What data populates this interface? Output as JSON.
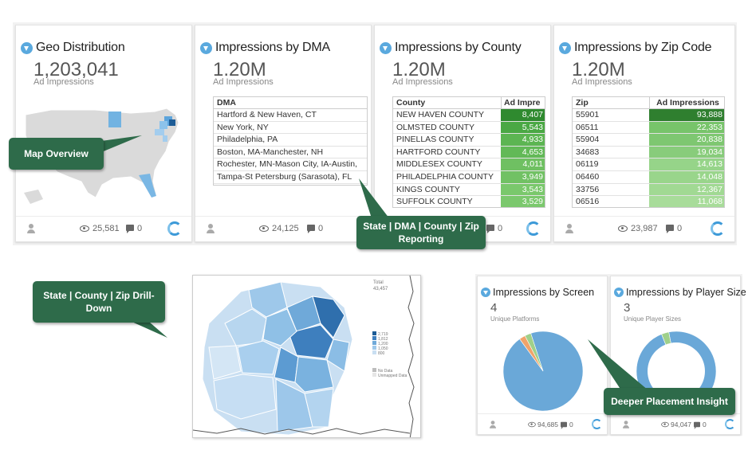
{
  "cards": {
    "geo": {
      "title": "Geo Distribution",
      "value": "1,203,041",
      "subtitle": "Ad Impressions",
      "views": "25,581",
      "comments": "0"
    },
    "dma": {
      "title": "Impressions by DMA",
      "value": "1.20M",
      "subtitle": "Ad Impressions",
      "column": "DMA",
      "rows": [
        "Hartford & New Haven, CT",
        "New York, NY",
        "Philadelphia, PA",
        "Boston, MA-Manchester, NH",
        "Rochester, MN-Mason City, IA-Austin,",
        "Tampa-St Petersburg (Sarasota), FL"
      ],
      "views": "24,125",
      "comments": "0"
    },
    "county": {
      "title": "Impressions by County",
      "value": "1.20M",
      "subtitle": "Ad Impressions",
      "columns": [
        "County",
        "Ad Impre"
      ],
      "rows": [
        {
          "name": "NEW HAVEN COUNTY",
          "value": "8,407",
          "color": "#2f8a2f"
        },
        {
          "name": "OLMSTED COUNTY",
          "value": "5,543",
          "color": "#4aa844"
        },
        {
          "name": "PINELLAS COUNTY",
          "value": "4,933",
          "color": "#5cb552"
        },
        {
          "name": "HARTFORD COUNTY",
          "value": "4,653",
          "color": "#62b957"
        },
        {
          "name": "MIDDLESEX COUNTY",
          "value": "4,011",
          "color": "#6fc062"
        },
        {
          "name": "PHILADELPHIA COUNTY",
          "value": "3,949",
          "color": "#71c164"
        },
        {
          "name": "KINGS COUNTY",
          "value": "3,543",
          "color": "#7ac86c"
        },
        {
          "name": "SUFFOLK COUNTY",
          "value": "3,529",
          "color": "#7bc86d"
        }
      ],
      "views": "",
      "comments": "0"
    },
    "zip": {
      "title": "Impressions by Zip Code",
      "value": "1.20M",
      "subtitle": "Ad Impressions",
      "columns": [
        "Zip",
        "Ad Impressions"
      ],
      "rows": [
        {
          "name": "55901",
          "value": "93,888",
          "fraction": 1.0,
          "color": "#2f7f2f"
        },
        {
          "name": "06511",
          "value": "22,353",
          "fraction": 1.0,
          "color": "#77c46a"
        },
        {
          "name": "55904",
          "value": "20,838",
          "fraction": 1.0,
          "color": "#7ec771"
        },
        {
          "name": "34683",
          "value": "19,034",
          "fraction": 1.0,
          "color": "#88cc7b"
        },
        {
          "name": "06119",
          "value": "14,613",
          "fraction": 1.0,
          "color": "#96d489"
        },
        {
          "name": "06460",
          "value": "14,048",
          "fraction": 1.0,
          "color": "#99d58b"
        },
        {
          "name": "33756",
          "value": "12,367",
          "fraction": 1.0,
          "color": "#a1d993"
        },
        {
          "name": "06516",
          "value": "11,068",
          "fraction": 1.0,
          "color": "#a8dc9a"
        }
      ],
      "views": "23,987",
      "comments": "0"
    }
  },
  "callouts": {
    "map_overview": "Map Overview",
    "reporting": "State | DMA | County | Zip Reporting",
    "drilldown": "State | County | Zip Drill-Down",
    "placement": "Deeper Placement Insight"
  },
  "drill_map": {
    "total_label": "Total",
    "total_value": "43,457",
    "legend": [
      "2,719",
      "1,812",
      "1,200",
      "1,050",
      "800",
      "No Data",
      "Unmapped Data"
    ]
  },
  "screen_card": {
    "title": "Impressions by Screen",
    "value": "4",
    "subtitle": "Unique Platforms",
    "views": "94,685",
    "comments": "0",
    "pie": [
      {
        "label": "slice-1",
        "value": 95,
        "color": "#6aa8d8"
      },
      {
        "label": "slice-2",
        "value": 2.5,
        "color": "#f0a36a"
      },
      {
        "label": "slice-3",
        "value": 2.5,
        "color": "#9fd08a"
      }
    ]
  },
  "player_card": {
    "title": "Impressions by Player Size",
    "value": "3",
    "subtitle": "Unique Player Sizes",
    "views": "94,047",
    "comments": "0",
    "donut": [
      {
        "label": "slice-1",
        "value": 97,
        "color": "#6aa8d8"
      },
      {
        "label": "slice-2",
        "value": 3,
        "color": "#9fd08a"
      }
    ]
  },
  "colors": {
    "accent_blue": "#3d9ad8",
    "callout_green": "#2e6b4a"
  }
}
